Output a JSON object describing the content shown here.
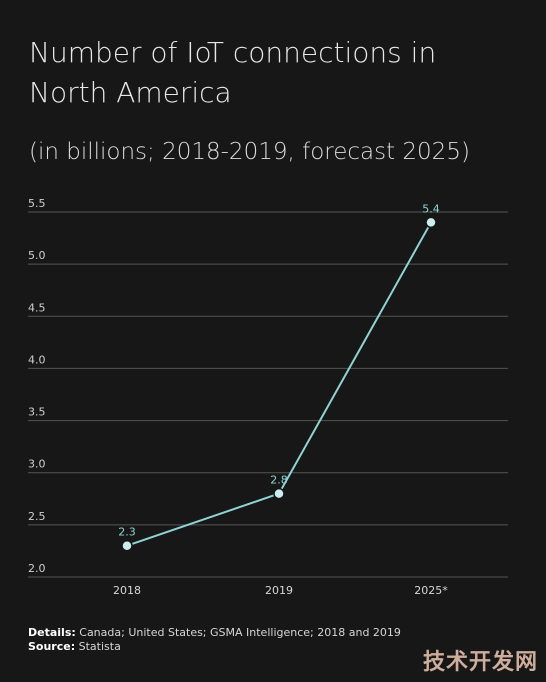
{
  "header": {
    "title": "Number of IoT connections in North America",
    "subtitle": "(in billions; 2018-2019, forecast 2025)"
  },
  "colors": {
    "background": "#171717",
    "line": "#8fd3d4",
    "point_fill": "#cdeeee",
    "label": "#8fd3d4",
    "grid": "#555555"
  },
  "chart_data": {
    "type": "line",
    "categories": [
      "2018",
      "2019",
      "2025*"
    ],
    "values": [
      2.3,
      2.8,
      5.4
    ],
    "data_labels": [
      "2.3",
      "2.8",
      "5.4"
    ],
    "yticks": [
      2.0,
      2.5,
      3.0,
      3.5,
      4.0,
      4.5,
      5.0,
      5.5
    ],
    "ytick_labels": [
      "2.0",
      "2.5",
      "3.0",
      "3.5",
      "4.0",
      "4.5",
      "5.0",
      "5.5"
    ],
    "ylim": [
      2.0,
      5.5
    ],
    "grid": true,
    "legend": "none"
  },
  "footer": {
    "details_label": "Details:",
    "details_text": "Canada; United States; GSMA Intelligence; 2018 and 2019",
    "source_label": "Source:",
    "source_text": "Statista"
  },
  "watermark": {
    "text": "技术开发网"
  }
}
